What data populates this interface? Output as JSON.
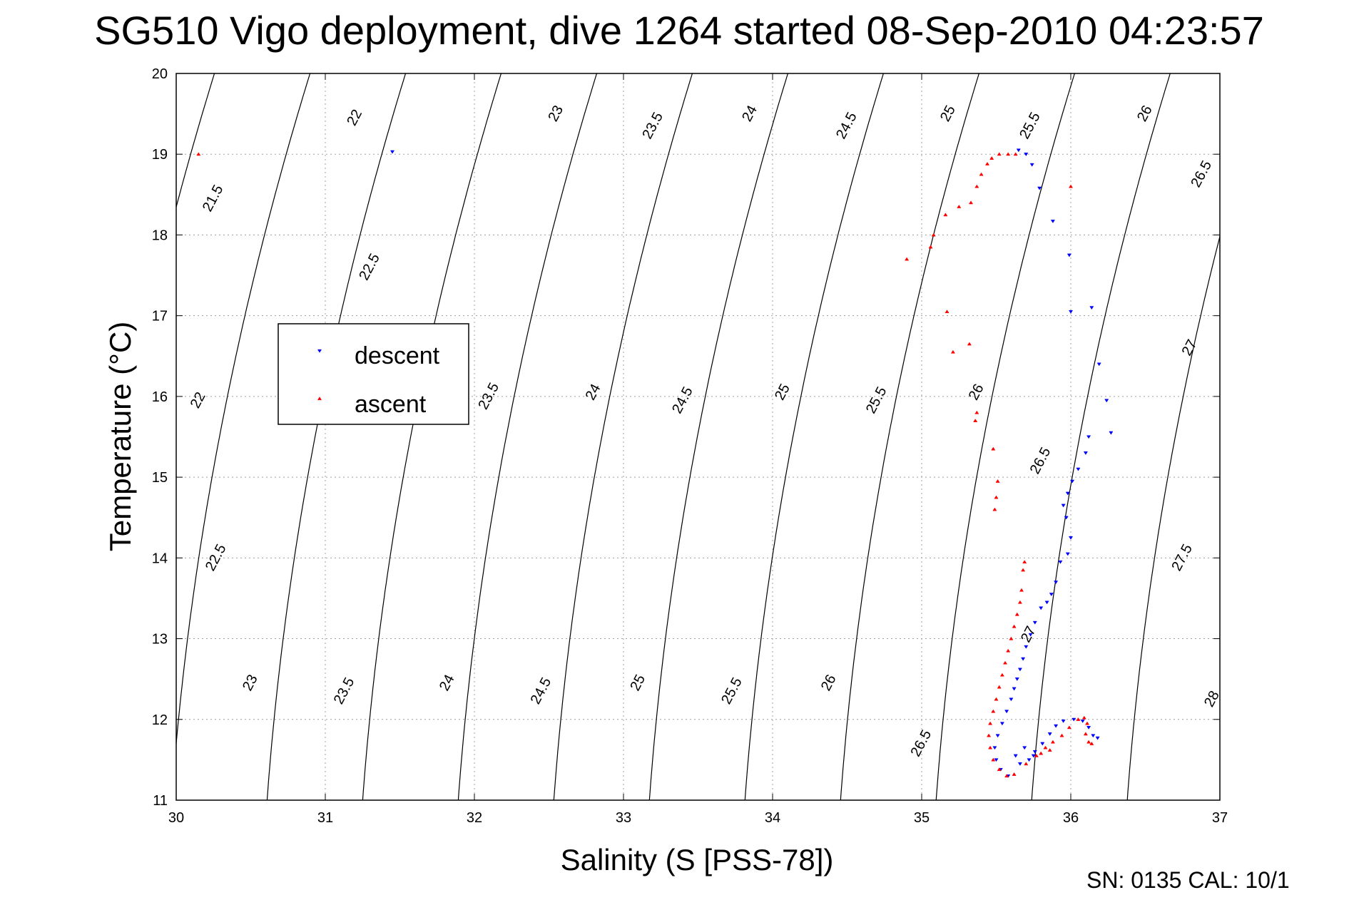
{
  "chart_data": {
    "type": "scatter",
    "title": "SG510 Vigo deployment, dive 1264 started 08-Sep-2010 04:23:57",
    "xlabel": "Salinity (S [PSS-78])",
    "ylabel": "Temperature (°C)",
    "xlim": [
      30,
      37
    ],
    "ylim": [
      11,
      20
    ],
    "xticks": [
      30,
      31,
      32,
      33,
      34,
      35,
      36,
      37
    ],
    "yticks": [
      11,
      12,
      13,
      14,
      15,
      16,
      17,
      18,
      19,
      20
    ],
    "grid": true,
    "legend_position": "upper-left",
    "footer": "SN: 0135  CAL: 10/1",
    "density_contours": {
      "levels": [
        21.5,
        22,
        22.5,
        23,
        23.5,
        24,
        24.5,
        25,
        25.5,
        26,
        26.5,
        27,
        27.5,
        28
      ],
      "labels": [
        {
          "text": "21.5",
          "s": 30.25,
          "t": 18.45
        },
        {
          "text": "22",
          "s": 31.2,
          "t": 19.45
        },
        {
          "text": "22.5",
          "s": 31.3,
          "t": 17.6
        },
        {
          "text": "23",
          "s": 32.55,
          "t": 19.5
        },
        {
          "text": "23.5",
          "s": 33.2,
          "t": 19.35
        },
        {
          "text": "24",
          "s": 33.85,
          "t": 19.5
        },
        {
          "text": "24.5",
          "s": 34.5,
          "t": 19.35
        },
        {
          "text": "25",
          "s": 35.18,
          "t": 19.5
        },
        {
          "text": "25.5",
          "s": 35.73,
          "t": 19.35
        },
        {
          "text": "26",
          "s": 36.5,
          "t": 19.5
        },
        {
          "text": "26.5",
          "s": 36.88,
          "t": 18.75
        },
        {
          "text": "22",
          "s": 30.15,
          "t": 15.95
        },
        {
          "text": "23.5",
          "s": 32.1,
          "t": 16.0
        },
        {
          "text": "24",
          "s": 32.8,
          "t": 16.05
        },
        {
          "text": "24.5",
          "s": 33.4,
          "t": 15.95
        },
        {
          "text": "25",
          "s": 34.07,
          "t": 16.05
        },
        {
          "text": "25.5",
          "s": 34.7,
          "t": 15.95
        },
        {
          "text": "26",
          "s": 35.37,
          "t": 16.05
        },
        {
          "text": "26.5",
          "s": 35.8,
          "t": 15.2
        },
        {
          "text": "27",
          "s": 36.8,
          "t": 16.6
        },
        {
          "text": "22.5",
          "s": 30.27,
          "t": 14.0
        },
        {
          "text": "23",
          "s": 30.5,
          "t": 12.45
        },
        {
          "text": "23.5",
          "s": 31.13,
          "t": 12.35
        },
        {
          "text": "24",
          "s": 31.82,
          "t": 12.45
        },
        {
          "text": "24.5",
          "s": 32.45,
          "t": 12.35
        },
        {
          "text": "25",
          "s": 33.1,
          "t": 12.45
        },
        {
          "text": "25.5",
          "s": 33.73,
          "t": 12.35
        },
        {
          "text": "26",
          "s": 34.38,
          "t": 12.45
        },
        {
          "text": "26.5",
          "s": 35.0,
          "t": 11.7
        },
        {
          "text": "27",
          "s": 35.72,
          "t": 13.05
        },
        {
          "text": "27.5",
          "s": 36.75,
          "t": 14.0
        },
        {
          "text": "28",
          "s": 36.95,
          "t": 12.25
        }
      ]
    },
    "series": [
      {
        "name": "descent",
        "color": "#0000ff",
        "marker": "triangle-down",
        "points": [
          [
            31.45,
            19.03
          ],
          [
            35.65,
            19.05
          ],
          [
            35.7,
            19.0
          ],
          [
            35.74,
            18.87
          ],
          [
            35.79,
            18.58
          ],
          [
            35.88,
            18.17
          ],
          [
            35.99,
            17.75
          ],
          [
            36.0,
            17.05
          ],
          [
            36.14,
            17.1
          ],
          [
            36.19,
            16.4
          ],
          [
            36.24,
            15.95
          ],
          [
            36.27,
            15.55
          ],
          [
            36.12,
            15.5
          ],
          [
            36.1,
            15.3
          ],
          [
            36.05,
            15.1
          ],
          [
            36.01,
            14.95
          ],
          [
            35.98,
            14.8
          ],
          [
            35.95,
            14.65
          ],
          [
            35.97,
            14.5
          ],
          [
            36.0,
            14.25
          ],
          [
            35.98,
            14.05
          ],
          [
            35.93,
            13.95
          ],
          [
            35.9,
            13.7
          ],
          [
            35.87,
            13.55
          ],
          [
            35.84,
            13.45
          ],
          [
            35.8,
            13.38
          ],
          [
            35.76,
            13.2
          ],
          [
            35.73,
            13.05
          ],
          [
            35.7,
            12.9
          ],
          [
            35.68,
            12.75
          ],
          [
            35.66,
            12.62
          ],
          [
            35.64,
            12.5
          ],
          [
            35.62,
            12.38
          ],
          [
            35.6,
            12.25
          ],
          [
            35.57,
            12.1
          ],
          [
            35.54,
            11.95
          ],
          [
            35.51,
            11.8
          ],
          [
            35.49,
            11.65
          ],
          [
            35.5,
            11.5
          ],
          [
            35.53,
            11.38
          ],
          [
            35.58,
            11.3
          ],
          [
            35.66,
            11.45
          ],
          [
            35.72,
            11.5
          ],
          [
            35.76,
            11.6
          ],
          [
            35.81,
            11.7
          ],
          [
            35.86,
            11.82
          ],
          [
            35.9,
            11.92
          ],
          [
            35.95,
            11.98
          ],
          [
            36.02,
            12.0
          ],
          [
            36.08,
            11.98
          ],
          [
            36.12,
            11.9
          ],
          [
            36.15,
            11.8
          ],
          [
            36.18,
            11.77
          ],
          [
            35.75,
            11.55
          ],
          [
            35.69,
            11.65
          ],
          [
            35.63,
            11.55
          ]
        ]
      },
      {
        "name": "ascent",
        "color": "#ff0000",
        "marker": "triangle-up",
        "points": [
          [
            30.15,
            19.0
          ],
          [
            35.47,
            18.95
          ],
          [
            35.52,
            19.0
          ],
          [
            35.58,
            19.0
          ],
          [
            35.63,
            19.0
          ],
          [
            35.44,
            18.88
          ],
          [
            35.4,
            18.75
          ],
          [
            35.37,
            18.6
          ],
          [
            35.33,
            18.4
          ],
          [
            35.25,
            18.35
          ],
          [
            35.16,
            18.25
          ],
          [
            35.08,
            18.0
          ],
          [
            35.06,
            17.85
          ],
          [
            34.9,
            17.7
          ],
          [
            36.0,
            18.6
          ],
          [
            35.17,
            17.05
          ],
          [
            35.32,
            16.65
          ],
          [
            35.21,
            16.55
          ],
          [
            35.37,
            15.8
          ],
          [
            35.36,
            15.7
          ],
          [
            35.48,
            15.35
          ],
          [
            35.51,
            14.95
          ],
          [
            35.5,
            14.75
          ],
          [
            35.49,
            14.6
          ],
          [
            35.69,
            13.95
          ],
          [
            35.68,
            13.85
          ],
          [
            35.67,
            13.6
          ],
          [
            35.66,
            13.45
          ],
          [
            35.64,
            13.3
          ],
          [
            35.62,
            13.15
          ],
          [
            35.6,
            13.0
          ],
          [
            35.58,
            12.85
          ],
          [
            35.56,
            12.7
          ],
          [
            35.54,
            12.55
          ],
          [
            35.52,
            12.4
          ],
          [
            35.5,
            12.25
          ],
          [
            35.48,
            12.1
          ],
          [
            35.46,
            11.95
          ],
          [
            35.45,
            11.8
          ],
          [
            35.46,
            11.65
          ],
          [
            35.48,
            11.5
          ],
          [
            35.52,
            11.38
          ],
          [
            35.57,
            11.3
          ],
          [
            35.62,
            11.32
          ],
          [
            35.7,
            11.45
          ],
          [
            35.77,
            11.55
          ],
          [
            35.83,
            11.65
          ],
          [
            35.88,
            11.72
          ],
          [
            35.94,
            11.8
          ],
          [
            35.99,
            11.9
          ],
          [
            36.05,
            12.0
          ],
          [
            36.09,
            12.02
          ],
          [
            36.11,
            11.95
          ],
          [
            36.1,
            11.82
          ],
          [
            36.12,
            11.72
          ],
          [
            36.14,
            11.7
          ],
          [
            35.86,
            11.62
          ],
          [
            35.8,
            11.58
          ]
        ]
      }
    ]
  }
}
